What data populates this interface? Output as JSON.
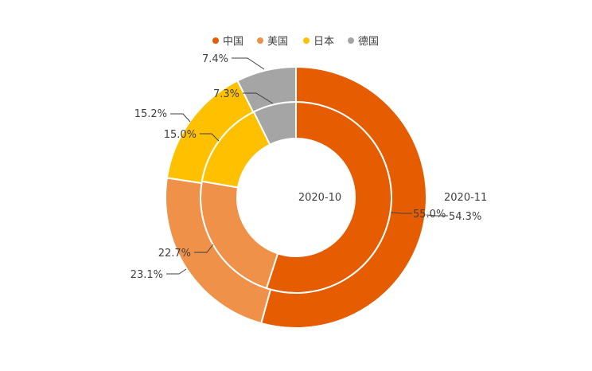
{
  "chart_data": {
    "type": "pie",
    "subtype": "doughnut",
    "categories": [
      "中国",
      "美国",
      "日本",
      "德国"
    ],
    "colors": [
      "#E65C00",
      "#F0914A",
      "#FFC000",
      "#A5A5A5"
    ],
    "legend": {
      "position": "top",
      "entries": [
        "中国",
        "美国",
        "日本",
        "德国"
      ]
    },
    "series": [
      {
        "name": "2020-10",
        "values": [
          55.0,
          22.7,
          15.0,
          7.3
        ],
        "labels": [
          "55.0%",
          "22.7%",
          "15.0%",
          "7.3%"
        ]
      },
      {
        "name": "2020-11",
        "values": [
          54.3,
          23.1,
          15.2,
          7.4
        ],
        "labels": [
          "54.3%",
          "23.1%",
          "15.2%",
          "7.4%"
        ]
      }
    ]
  }
}
